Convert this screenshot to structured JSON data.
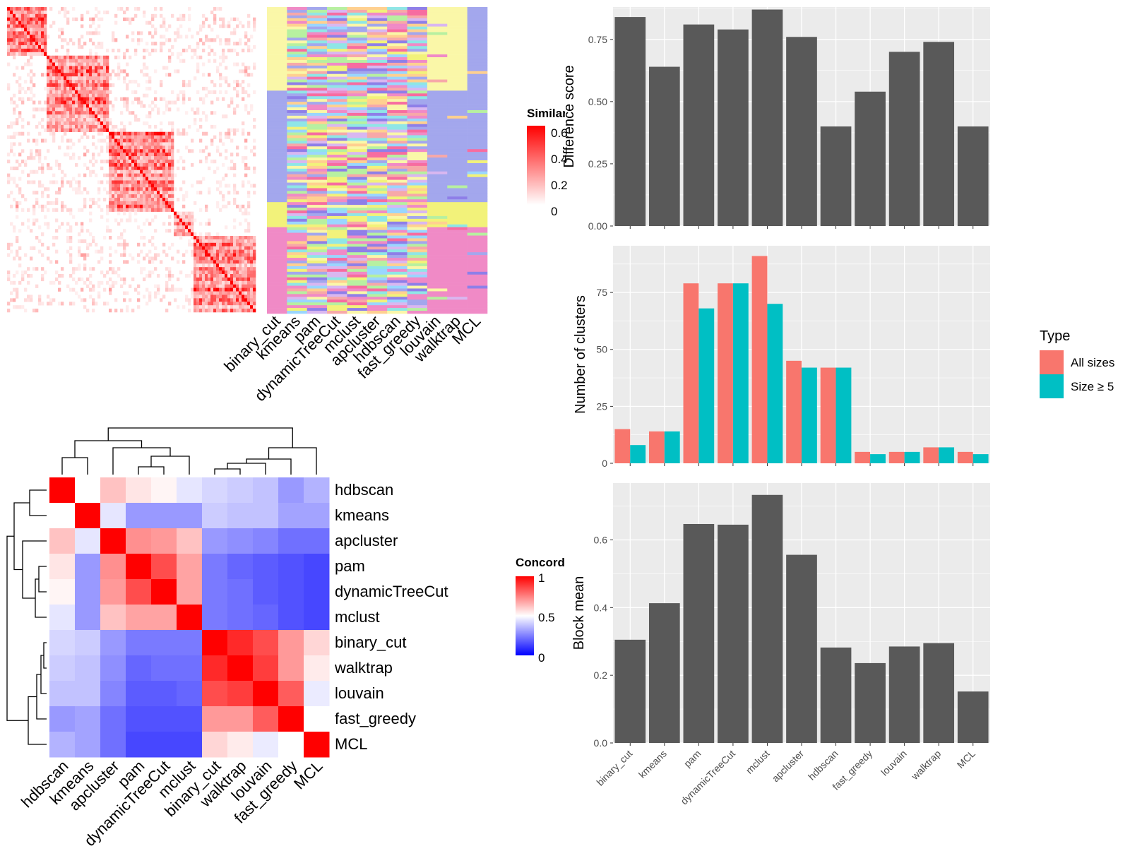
{
  "colors": {
    "panel_bg": "#EBEBEB",
    "grid": "#FFFFFF",
    "bar_dark": "#595959",
    "all_sizes": "#F8766D",
    "size5": "#00BFC4",
    "sim_high": "#FF0000",
    "sim_low": "#FFFFFF",
    "conc_high": "#FF0000",
    "conc_mid": "#FFFFFF",
    "conc_low": "#0000FF"
  },
  "similarity_legend": {
    "title": "Similarity",
    "ticks": [
      "0.6",
      "0.4",
      "0.2",
      "0"
    ]
  },
  "concordance_legend": {
    "title": "Concordance",
    "ticks": [
      "1",
      "0.5",
      "0"
    ]
  },
  "class_columns": [
    "binary_cut",
    "kmeans",
    "pam",
    "dynamicTreeCut",
    "mclust",
    "apcluster",
    "hdbscan",
    "fast_greedy",
    "louvain",
    "walktrap",
    "MCL"
  ],
  "chart_data": [
    {
      "type": "heatmap",
      "title": "",
      "description_note": "",
      "order": [
        "hdbscan",
        "kmeans",
        "apcluster",
        "pam",
        "dynamicTreeCut",
        "mclust",
        "binary_cut",
        "walktrap",
        "louvain",
        "fast_greedy",
        "MCL"
      ],
      "values": [
        [
          1.0,
          0.5,
          0.62,
          0.55,
          0.52,
          0.45,
          0.42,
          0.4,
          0.38,
          0.3,
          0.35
        ],
        [
          0.5,
          1.0,
          0.45,
          0.3,
          0.3,
          0.3,
          0.4,
          0.38,
          0.38,
          0.32,
          0.32
        ],
        [
          0.62,
          0.45,
          1.0,
          0.72,
          0.7,
          0.62,
          0.3,
          0.28,
          0.26,
          0.22,
          0.22
        ],
        [
          0.55,
          0.3,
          0.72,
          1.0,
          0.85,
          0.68,
          0.24,
          0.2,
          0.18,
          0.16,
          0.14
        ],
        [
          0.52,
          0.3,
          0.7,
          0.85,
          1.0,
          0.68,
          0.24,
          0.22,
          0.18,
          0.16,
          0.14
        ],
        [
          0.45,
          0.3,
          0.62,
          0.68,
          0.68,
          1.0,
          0.24,
          0.22,
          0.2,
          0.16,
          0.14
        ],
        [
          0.42,
          0.4,
          0.3,
          0.24,
          0.24,
          0.24,
          1.0,
          0.92,
          0.85,
          0.7,
          0.58
        ],
        [
          0.4,
          0.38,
          0.28,
          0.2,
          0.22,
          0.22,
          0.92,
          1.0,
          0.88,
          0.7,
          0.54
        ],
        [
          0.38,
          0.38,
          0.26,
          0.18,
          0.18,
          0.2,
          0.85,
          0.88,
          1.0,
          0.82,
          0.46
        ],
        [
          0.3,
          0.32,
          0.22,
          0.16,
          0.16,
          0.16,
          0.7,
          0.7,
          0.82,
          1.0,
          0.5
        ],
        [
          0.35,
          0.32,
          0.22,
          0.14,
          0.14,
          0.14,
          0.58,
          0.54,
          0.46,
          0.5,
          1.0
        ]
      ],
      "legend_title": "Concordance"
    },
    {
      "type": "bar",
      "categories": [
        "binary_cut",
        "kmeans",
        "pam",
        "dynamicTreeCut",
        "mclust",
        "apcluster",
        "hdbscan",
        "fast_greedy",
        "louvain",
        "walktrap",
        "MCL"
      ],
      "values": [
        0.84,
        0.64,
        0.81,
        0.79,
        0.87,
        0.76,
        0.4,
        0.54,
        0.7,
        0.74,
        0.4
      ],
      "ylabel": "Difference score",
      "ylim": [
        0,
        0.88
      ],
      "yticks": [
        "0.00",
        "0.25",
        "0.50",
        "0.75"
      ],
      "grid": true
    },
    {
      "type": "bar",
      "categories": [
        "binary_cut",
        "kmeans",
        "pam",
        "dynamicTreeCut",
        "mclust",
        "apcluster",
        "hdbscan",
        "fast_greedy",
        "louvain",
        "walktrap",
        "MCL"
      ],
      "series": [
        {
          "name": "All sizes",
          "values": [
            15,
            14,
            79,
            79,
            91,
            45,
            42,
            5,
            5,
            7,
            5
          ]
        },
        {
          "name": "Size ≥ 5",
          "values": [
            8,
            14,
            68,
            79,
            70,
            42,
            42,
            4,
            5,
            7,
            4
          ]
        }
      ],
      "ylabel": "Number of clusters",
      "ylim": [
        0,
        95.5
      ],
      "yticks": [
        "0",
        "25",
        "50",
        "75"
      ],
      "legend_title": "Type",
      "legend_position": "right",
      "grid": true
    },
    {
      "type": "bar",
      "categories": [
        "binary_cut",
        "kmeans",
        "pam",
        "dynamicTreeCut",
        "mclust",
        "apcluster",
        "hdbscan",
        "fast_greedy",
        "louvain",
        "walktrap",
        "MCL"
      ],
      "values": [
        0.305,
        0.413,
        0.647,
        0.645,
        0.733,
        0.556,
        0.282,
        0.236,
        0.285,
        0.295,
        0.152
      ],
      "ylabel": "Block mean",
      "ylim": [
        0,
        0.768
      ],
      "yticks": [
        "0.0",
        "0.2",
        "0.4",
        "0.6"
      ],
      "grid": true
    }
  ]
}
